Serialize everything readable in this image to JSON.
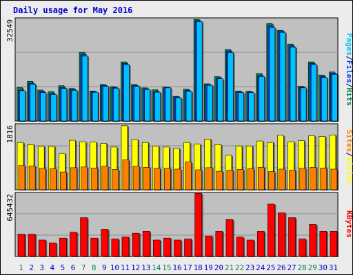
{
  "title": "Daily usage for May 2016",
  "colors": {
    "title": "#0000cc",
    "panel": "#c0c0c0",
    "grid": "#8c8c8c",
    "hits": "#00805c",
    "files": "#0040ff",
    "pages": "#00c0ff",
    "visits": "#ffff00",
    "sites": "#ff8000",
    "kbytes": "#ff0000",
    "weekday_label": "#00805c",
    "day_label": "#0000cc"
  },
  "chart_data": [
    {
      "type": "bar",
      "panel": "hits-files-pages",
      "ymax_label": "32549",
      "ylim": [
        0,
        32549
      ],
      "legend": [
        "Pages",
        "/",
        "Files",
        "/",
        "Hits"
      ],
      "x": [
        "1",
        "2",
        "3",
        "4",
        "5",
        "6",
        "7",
        "8",
        "9",
        "10",
        "11",
        "12",
        "13",
        "14",
        "15",
        "16",
        "17",
        "18",
        "19",
        "20",
        "21",
        "22",
        "23",
        "24",
        "25",
        "26",
        "27",
        "28",
        "29",
        "30",
        "31"
      ],
      "series": [
        {
          "name": "Hits",
          "values": [
            10700,
            12700,
            9900,
            9400,
            11300,
            10400,
            21900,
            9600,
            11700,
            11000,
            18900,
            11700,
            10600,
            10000,
            10800,
            7900,
            10200,
            32500,
            11900,
            14200,
            22900,
            9600,
            9500,
            15200,
            31200,
            29000,
            24600,
            11100,
            18900,
            14700,
            15700
          ]
        },
        {
          "name": "Files",
          "values": [
            9900,
            12000,
            9400,
            8800,
            10700,
            10100,
            21200,
            9400,
            11300,
            10700,
            18400,
            11300,
            10300,
            9400,
            10800,
            7700,
            9800,
            32000,
            11600,
            13800,
            22300,
            9300,
            9300,
            14500,
            30400,
            28800,
            24000,
            10800,
            18400,
            14200,
            15300
          ]
        },
        {
          "name": "Pages",
          "values": [
            9700,
            11800,
            9100,
            8500,
            10400,
            9800,
            20800,
            9200,
            11100,
            10500,
            18000,
            11100,
            10100,
            9200,
            10600,
            7400,
            9500,
            31800,
            11400,
            13500,
            21900,
            9100,
            9100,
            14200,
            29900,
            28300,
            23600,
            10600,
            18000,
            13900,
            14900
          ]
        }
      ]
    },
    {
      "type": "bar",
      "panel": "visits-sites",
      "ymax_label": "1816",
      "ylim": [
        0,
        1816
      ],
      "legend": [
        "Sites",
        "/",
        "Visits"
      ],
      "x": [
        "1",
        "2",
        "3",
        "4",
        "5",
        "6",
        "7",
        "8",
        "9",
        "10",
        "11",
        "12",
        "13",
        "14",
        "15",
        "16",
        "17",
        "18",
        "19",
        "20",
        "21",
        "22",
        "23",
        "24",
        "25",
        "26",
        "27",
        "28",
        "29",
        "30",
        "31"
      ],
      "series": [
        {
          "name": "Visits",
          "values": [
            1330,
            1270,
            1220,
            1220,
            1020,
            1390,
            1350,
            1340,
            1300,
            1200,
            1800,
            1410,
            1330,
            1230,
            1200,
            1160,
            1330,
            1280,
            1420,
            1270,
            970,
            1230,
            1230,
            1370,
            1330,
            1530,
            1350,
            1380,
            1520,
            1500,
            1540
          ]
        },
        {
          "name": "Sites",
          "values": [
            680,
            670,
            600,
            590,
            500,
            620,
            640,
            610,
            660,
            570,
            840,
            660,
            630,
            600,
            600,
            580,
            780,
            560,
            620,
            520,
            550,
            570,
            590,
            630,
            510,
            580,
            550,
            600,
            630,
            610,
            580
          ]
        }
      ]
    },
    {
      "type": "bar",
      "panel": "kbytes",
      "ymax_label": "645432",
      "ylim": [
        0,
        645432
      ],
      "legend": [
        "KBytes"
      ],
      "x": [
        "1",
        "2",
        "3",
        "4",
        "5",
        "6",
        "7",
        "8",
        "9",
        "10",
        "11",
        "12",
        "13",
        "14",
        "15",
        "16",
        "17",
        "18",
        "19",
        "20",
        "21",
        "22",
        "23",
        "24",
        "25",
        "26",
        "27",
        "28",
        "29",
        "30",
        "31"
      ],
      "series": [
        {
          "name": "KBytes",
          "values": [
            230000,
            230000,
            170000,
            140000,
            190000,
            250000,
            400000,
            190000,
            280000,
            180000,
            200000,
            240000,
            260000,
            170000,
            190000,
            170000,
            180000,
            650000,
            210000,
            260000,
            380000,
            200000,
            170000,
            260000,
            540000,
            450000,
            400000,
            180000,
            330000,
            260000,
            260000
          ]
        }
      ]
    }
  ]
}
